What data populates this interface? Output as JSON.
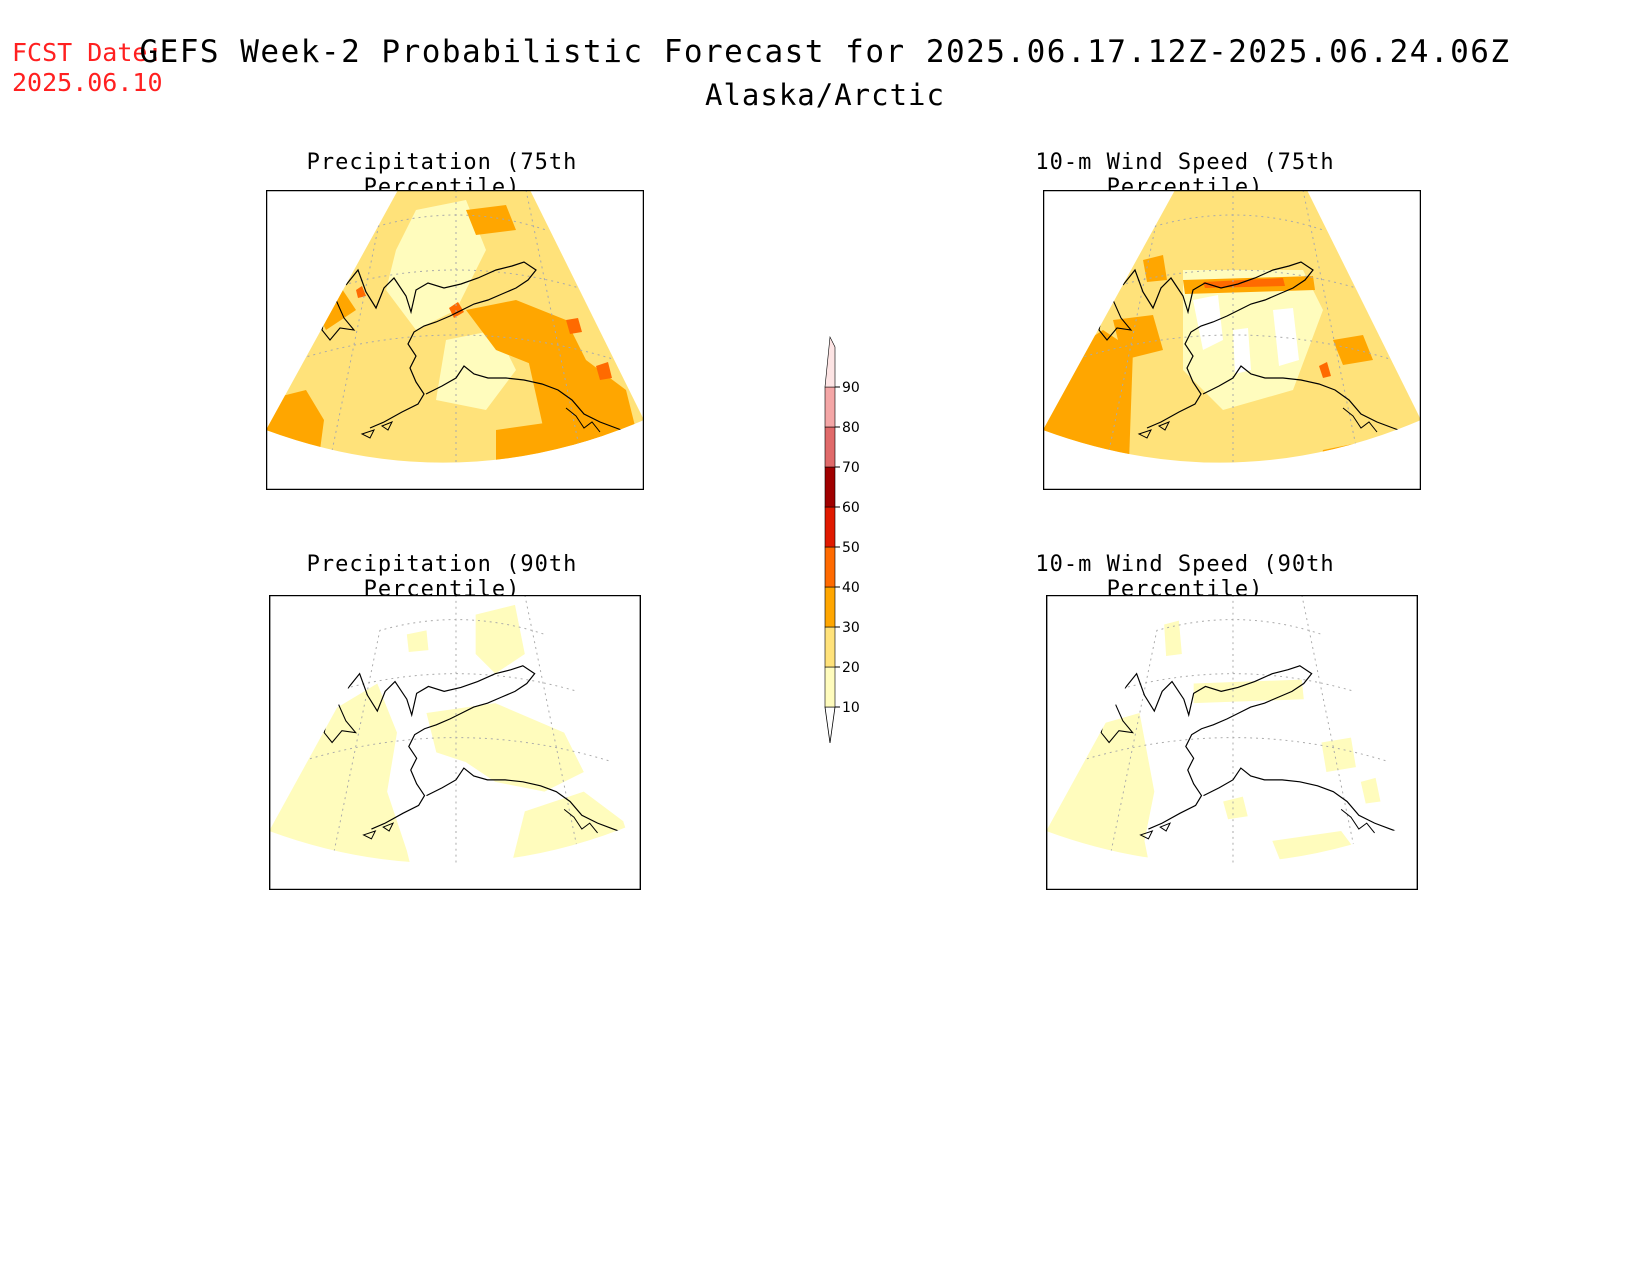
{
  "header": {
    "fcst_label": "FCST Date:",
    "fcst_date": "2025.06.10",
    "title": "GEFS Week-2 Probabilistic Forecast for 2025.06.17.12Z-2025.06.24.06Z",
    "region": "Alaska/Arctic"
  },
  "panels": [
    {
      "title": "Precipitation (75th Percentile)"
    },
    {
      "title": "10-m Wind Speed (75th Percentile)"
    },
    {
      "title": "Precipitation (90th Percentile)"
    },
    {
      "title": "10-m Wind Speed (90th Percentile)"
    }
  ],
  "legend": {
    "levels": [
      "10",
      "20",
      "30",
      "40",
      "50",
      "60",
      "70",
      "80",
      "90"
    ],
    "colors": {
      "10-20": "#fffcbd",
      "20-30": "#ffe27a",
      "30-40": "#ffa600",
      "40-50": "#ff6a00",
      "50-60": "#e01a00",
      "60-70": "#a00000",
      "70-80": "#e06a6a",
      "80-90": "#f4a6a6",
      "90+": "#fde4e4"
    }
  }
}
